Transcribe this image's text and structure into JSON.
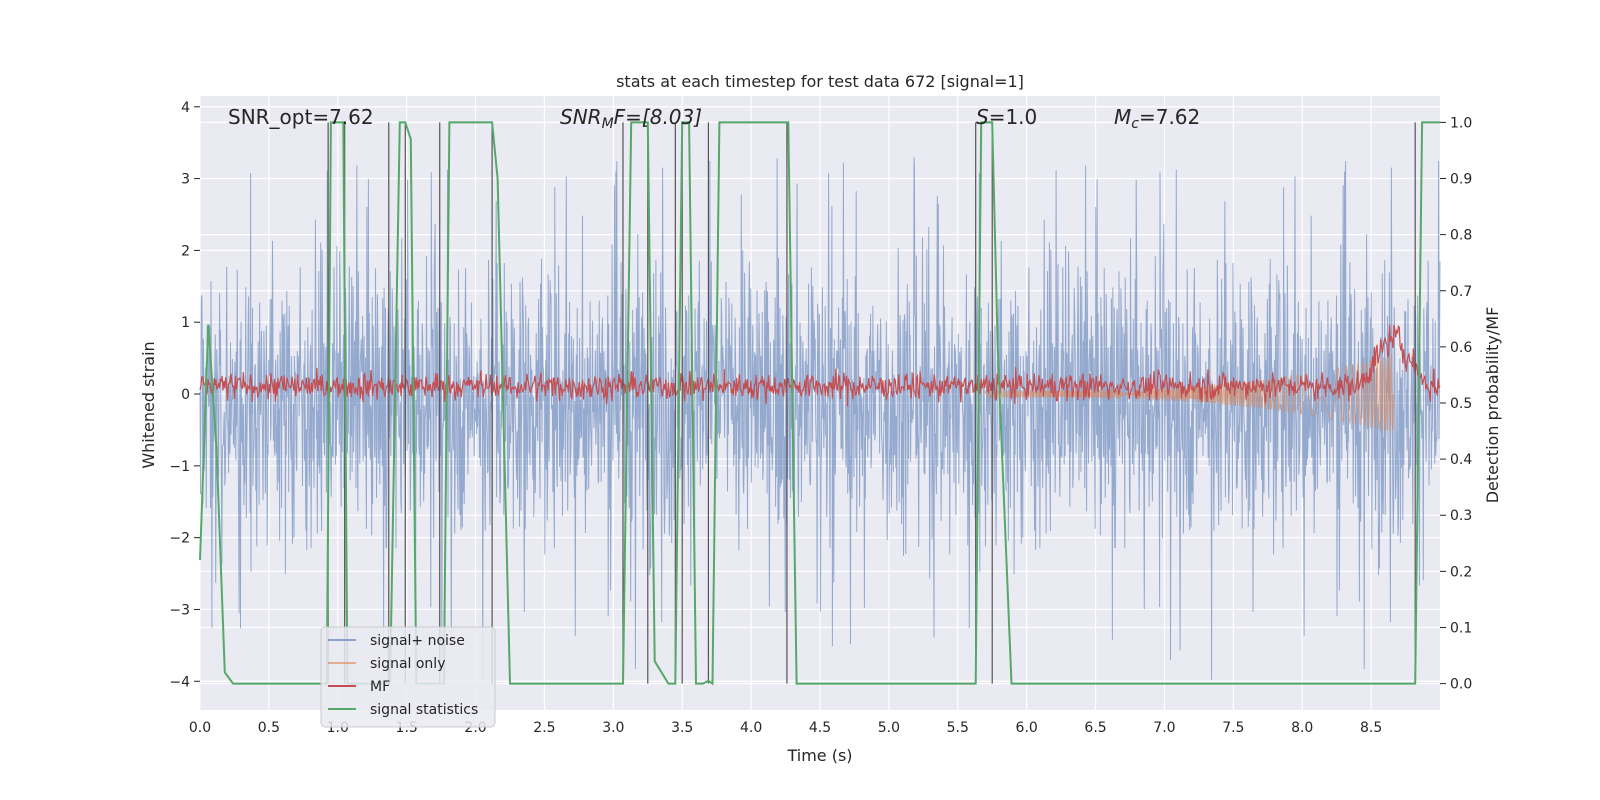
{
  "chart_data": {
    "type": "line",
    "title": "stats at each timestep for test data 672 [signal=1]",
    "xlabel": "Time (s)",
    "ylabel": "Whitened strain",
    "y2label": "Detection probability/MF",
    "xlim": [
      0,
      9.0
    ],
    "ylim": [
      -4.4,
      4.15
    ],
    "y2lim": [
      -0.047,
      1.047
    ],
    "x_ticks": [
      0.0,
      0.5,
      1.0,
      1.5,
      2.0,
      2.5,
      3.0,
      3.5,
      4.0,
      4.5,
      5.0,
      5.5,
      6.0,
      6.5,
      7.0,
      7.5,
      8.0,
      8.5
    ],
    "x_tick_labels": [
      "0.0",
      "0.5",
      "1.0",
      "1.5",
      "2.0",
      "2.5",
      "3.0",
      "3.5",
      "4.0",
      "4.5",
      "5.0",
      "5.5",
      "6.0",
      "6.5",
      "7.0",
      "7.5",
      "8.0",
      "8.5"
    ],
    "y_ticks": [
      -4,
      -3,
      -2,
      -1,
      0,
      1,
      2,
      3,
      4
    ],
    "y_tick_labels": [
      "−4",
      "−3",
      "−2",
      "−1",
      "0",
      "1",
      "2",
      "3",
      "4"
    ],
    "y2_ticks": [
      0.0,
      0.1,
      0.2,
      0.3,
      0.4,
      0.5,
      0.6,
      0.7,
      0.8,
      0.9,
      1.0
    ],
    "y2_tick_labels": [
      "0.0",
      "0.1",
      "0.2",
      "0.3",
      "0.4",
      "0.5",
      "0.6",
      "0.7",
      "0.8",
      "0.9",
      "1.0"
    ],
    "annotations": {
      "snr_opt": "SNR_opt=7.62",
      "snr_mf_base": "SNR",
      "snr_mf_sub": "M",
      "snr_mf_rest": "F=[8.03]",
      "s_label": "S",
      "s_value": "=1.0",
      "mc_base": "M",
      "mc_sub": "c",
      "mc_value": "=7.62"
    },
    "legend": [
      "signal+ noise",
      "signal only",
      "MF",
      "signal statistics"
    ],
    "legend_position": "lower-left",
    "grid": true,
    "series": [
      {
        "name": "signal+ noise",
        "axis": "left",
        "color": "#4c72b0",
        "typical_band": [
          -1.6,
          1.45
        ],
        "peak_extremes": [
          -4.0,
          3.3
        ]
      },
      {
        "name": "signal only",
        "axis": "left",
        "color": "#dd8452",
        "x_start": 5.7,
        "x_end": 8.66,
        "envelope_start": 0.05,
        "envelope_end": 0.55
      },
      {
        "name": "MF",
        "axis": "right",
        "color": "#c44e52",
        "baseline": 0.53,
        "spike_x": 8.66,
        "spike_value": 0.64
      },
      {
        "name": "signal statistics",
        "axis": "right",
        "color": "#55a868",
        "x": [
          0.0,
          0.06,
          0.12,
          0.18,
          0.24,
          0.3,
          0.92,
          0.95,
          1.0,
          1.04,
          1.07,
          1.11,
          1.38,
          1.45,
          1.49,
          1.53,
          1.57,
          1.74,
          1.77,
          1.81,
          2.12,
          2.16,
          2.25,
          3.07,
          3.13,
          3.25,
          3.3,
          3.4,
          3.45,
          3.5,
          3.55,
          3.6,
          3.65,
          3.69,
          3.72,
          3.77,
          4.27,
          4.33,
          5.63,
          5.67,
          5.75,
          5.79,
          5.89,
          8.82,
          8.87,
          8.92,
          9.0
        ],
        "y": [
          0.22,
          0.64,
          0.42,
          0.02,
          0.0,
          0.0,
          0.0,
          1.0,
          1.0,
          1.0,
          0.0,
          0.0,
          0.0,
          1.0,
          1.0,
          0.97,
          0.0,
          0.0,
          0.0,
          1.0,
          1.0,
          0.9,
          0.0,
          0.0,
          1.0,
          1.0,
          0.04,
          0.0,
          0.0,
          1.0,
          1.0,
          0.0,
          0.0,
          0.005,
          0.0,
          1.0,
          1.0,
          0.0,
          0.0,
          1.0,
          1.0,
          0.6,
          0.0,
          0.0,
          1.0,
          1.0,
          1.0
        ]
      },
      {
        "name": "trigger markers",
        "axis": "right",
        "color": "#555555",
        "x": [
          0.93,
          1.05,
          1.37,
          1.49,
          1.74,
          2.12,
          3.07,
          3.25,
          3.45,
          3.5,
          3.69,
          4.26,
          5.63,
          5.75,
          8.82
        ],
        "y_top": 1.0,
        "y_bottom": 0.0
      }
    ]
  }
}
